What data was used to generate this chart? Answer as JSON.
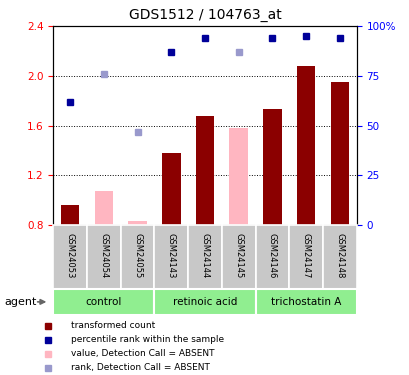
{
  "title": "GDS1512 / 104763_at",
  "samples": [
    "GSM24053",
    "GSM24054",
    "GSM24055",
    "GSM24143",
    "GSM24144",
    "GSM24145",
    "GSM24146",
    "GSM24147",
    "GSM24148"
  ],
  "bar_values": [
    0.96,
    null,
    null,
    1.38,
    1.68,
    null,
    1.73,
    2.08,
    1.95
  ],
  "bar_absent_values": [
    null,
    1.07,
    0.83,
    null,
    null,
    1.58,
    null,
    null,
    null
  ],
  "rank_pct_present": [
    62,
    null,
    null,
    87,
    94,
    null,
    94,
    95,
    94
  ],
  "rank_pct_absent": [
    null,
    76,
    47,
    null,
    null,
    87,
    null,
    null,
    null
  ],
  "ylim_left": [
    0.8,
    2.4
  ],
  "ylim_right": [
    0,
    100
  ],
  "yticks_left": [
    0.8,
    1.2,
    1.6,
    2.0,
    2.4
  ],
  "yticks_right": [
    0,
    25,
    50,
    75,
    100
  ],
  "right_tick_labels": [
    "0",
    "25",
    "50",
    "75",
    "100%"
  ],
  "dotted_lines": [
    1.2,
    1.6,
    2.0
  ],
  "bar_color_present": "#8B0000",
  "bar_color_absent": "#FFB6C1",
  "rank_color_present": "#000099",
  "rank_color_absent": "#9999CC",
  "group_names": [
    "control",
    "retinoic acid",
    "trichostatin A"
  ],
  "group_ranges": [
    [
      0,
      3
    ],
    [
      3,
      6
    ],
    [
      6,
      9
    ]
  ],
  "group_color": "#90EE90",
  "sample_box_color": "#C8C8C8",
  "agent_label": "agent",
  "legend_items": [
    {
      "label": "transformed count",
      "color": "#8B0000"
    },
    {
      "label": "percentile rank within the sample",
      "color": "#000099"
    },
    {
      "label": "value, Detection Call = ABSENT",
      "color": "#FFB6C1"
    },
    {
      "label": "rank, Detection Call = ABSENT",
      "color": "#9999CC"
    }
  ]
}
